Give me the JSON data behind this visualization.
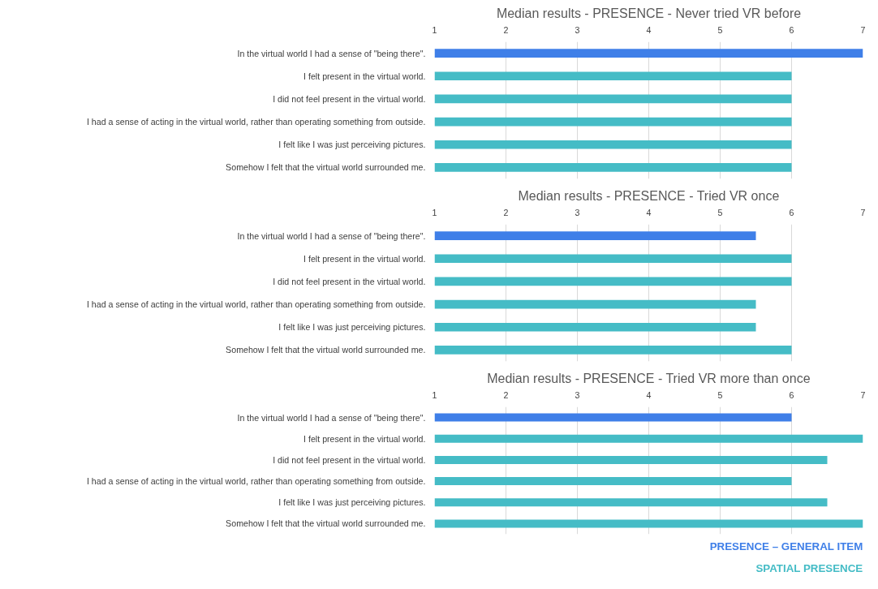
{
  "chart_data": [
    {
      "type": "bar",
      "orientation": "horizontal",
      "title": "Median results - PRESENCE - Never tried VR before",
      "categories": [
        "In the virtual world I had a sense of \"being there\".",
        "I felt present in the virtual world.",
        "I did not feel present in the virtual world.",
        "I had a sense of acting in the virtual world, rather than operating something from outside.",
        "I felt like I was just perceiving pictures.",
        "Somehow I felt that the virtual world surrounded me."
      ],
      "series": [
        {
          "color": "#3f7fe8",
          "values": [
            7,
            null,
            null,
            null,
            null,
            null
          ]
        },
        {
          "color": "#45bcc6",
          "values": [
            null,
            6,
            6,
            6,
            6,
            6
          ]
        }
      ],
      "xlim": [
        1,
        7
      ],
      "xticks": [
        1,
        2,
        3,
        4,
        5,
        6,
        7
      ],
      "grid": "x"
    },
    {
      "type": "bar",
      "orientation": "horizontal",
      "title": "Median results - PRESENCE - Tried VR once",
      "categories": [
        "In the virtual world I had a sense of \"being there\".",
        "I felt present in the virtual world.",
        "I did not feel present in the virtual world.",
        "I had a sense of acting in the virtual world, rather than operating something from outside.",
        "I felt like I was just perceiving pictures.",
        "Somehow I felt that the virtual world surrounded me."
      ],
      "series": [
        {
          "color": "#3f7fe8",
          "values": [
            5.5,
            null,
            null,
            null,
            null,
            null
          ]
        },
        {
          "color": "#45bcc6",
          "values": [
            null,
            6,
            6,
            5.5,
            5.5,
            6
          ]
        }
      ],
      "xlim": [
        1,
        7
      ],
      "xticks": [
        1,
        2,
        3,
        4,
        5,
        6,
        7
      ],
      "grid": "x"
    },
    {
      "type": "bar",
      "orientation": "horizontal",
      "title": "Median results - PRESENCE - Tried VR more than once",
      "categories": [
        "In the virtual world I had a sense of \"being there\".",
        "I felt present in the virtual world.",
        "I did not feel present in the virtual world.",
        "I had a sense of acting in the virtual world, rather than operating something from outside.",
        "I felt like I was just perceiving pictures.",
        "Somehow I felt that the virtual world surrounded me."
      ],
      "series": [
        {
          "name": "PRESENCE – GENERAL ITEM",
          "color": "#3f7fe8",
          "values": [
            6,
            null,
            null,
            null,
            null,
            null
          ]
        },
        {
          "name": "SPATIAL PRESENCE",
          "color": "#45bcc6",
          "values": [
            null,
            7,
            6.5,
            6,
            6.5,
            7
          ]
        }
      ],
      "xlim": [
        1,
        7
      ],
      "xticks": [
        1,
        2,
        3,
        4,
        5,
        6,
        7
      ],
      "grid": "x"
    }
  ]
}
